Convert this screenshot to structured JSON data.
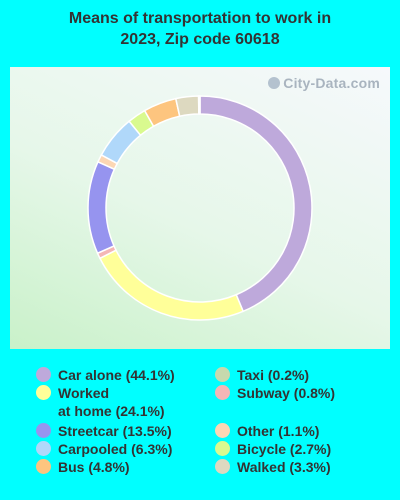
{
  "title": "Means of transportation to work in\n2023, Zip code 60618",
  "watermark": "City-Data.com",
  "chart_data": {
    "type": "pie",
    "style": "donut",
    "title": "Means of transportation to work in 2023, Zip code 60618",
    "slices": [
      {
        "label": "Car alone",
        "value": 44.1,
        "color": "#BEA9DB",
        "legend": "Car alone (44.1%)"
      },
      {
        "label": "Worked at home",
        "value": 24.1,
        "color": "#FFFF99",
        "legend": "Worked\nat home (24.1%)"
      },
      {
        "label": "Subway",
        "value": 0.8,
        "color": "#F4B6B6",
        "legend": "Subway (0.8%)"
      },
      {
        "label": "Streetcar",
        "value": 13.5,
        "color": "#9694EF",
        "legend": "Streetcar (13.5%)"
      },
      {
        "label": "Other",
        "value": 1.1,
        "color": "#FCD7B4",
        "legend": "Other (1.1%)"
      },
      {
        "label": "Carpooled",
        "value": 6.3,
        "color": "#B0D8FA",
        "legend": "Carpooled (6.3%)"
      },
      {
        "label": "Bicycle",
        "value": 2.7,
        "color": "#D9FA8F",
        "legend": "Bicycle (2.7%)"
      },
      {
        "label": "Bus",
        "value": 4.8,
        "color": "#FDC57F",
        "legend": "Bus (4.8%)"
      },
      {
        "label": "Walked",
        "value": 3.3,
        "color": "#DDD9C0",
        "legend": "Walked (3.3%)"
      },
      {
        "label": "Taxi",
        "value": 0.2,
        "color": "#C7D9AD",
        "legend": "Taxi (0.2%)"
      }
    ],
    "legend_order": [
      "Car alone",
      "Worked at home",
      "Streetcar",
      "Carpooled",
      "Bus",
      "Taxi",
      "Subway",
      "Other",
      "Bicycle",
      "Walked"
    ]
  }
}
